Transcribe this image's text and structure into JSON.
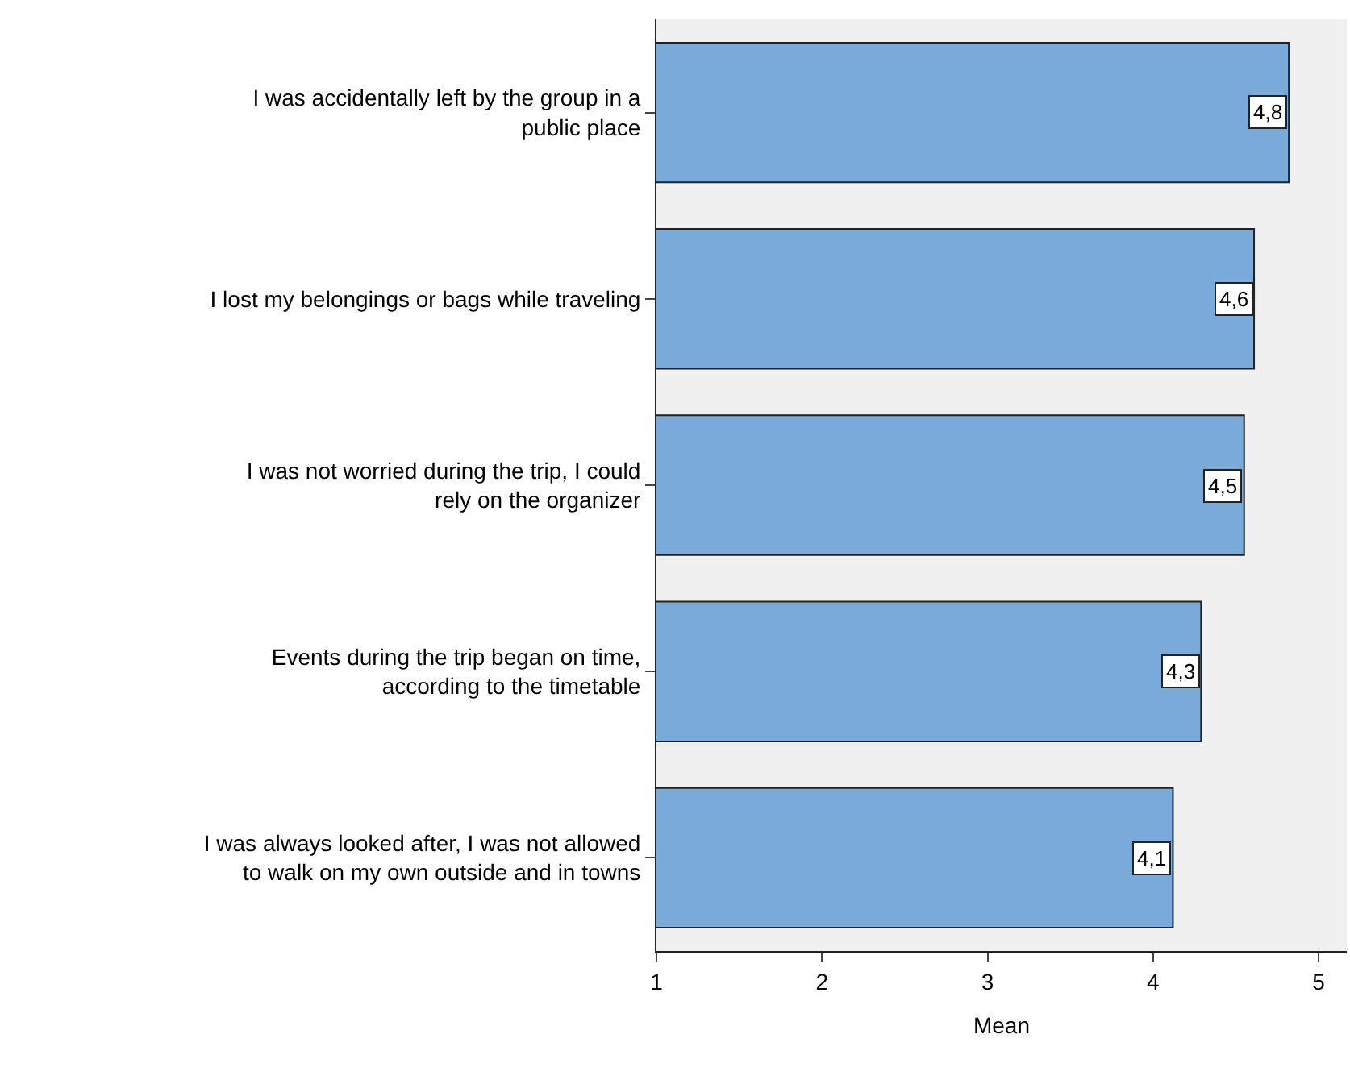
{
  "chart_data": {
    "type": "bar",
    "orientation": "horizontal",
    "xlabel": "Mean",
    "categories": [
      "I was accidentally left by the group in a public place",
      "I lost my belongings or bags while traveling",
      "I was not worried during the trip, I could rely on the organizer",
      "Events during the trip began on time, according to the timetable",
      "I was always looked after, I was not allowed to walk on my own outside and in towns"
    ],
    "values": [
      4.82,
      4.61,
      4.55,
      4.29,
      4.12
    ],
    "value_labels": [
      "4,8",
      "4,6",
      "4,5",
      "4,3",
      "4,1"
    ],
    "color": "#7aaad9",
    "xlim": [
      1,
      5.17
    ],
    "xticks": [
      1,
      2,
      3,
      4,
      5
    ],
    "grid": false,
    "legend": false
  }
}
